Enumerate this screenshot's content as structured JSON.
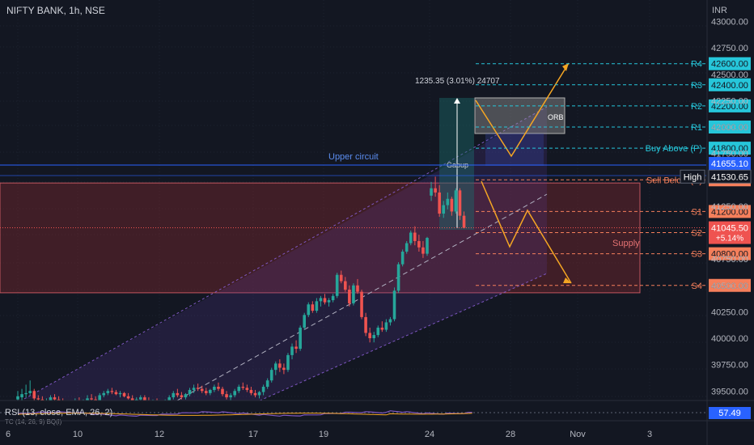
{
  "header": {
    "title": "NIFTY BANK, 1h, NSE",
    "currency": "INR"
  },
  "chart_data": {
    "type": "candlestick",
    "title": "NIFTY BANK, 1h, NSE",
    "y_unit": "INR",
    "price_ticks": [
      "43000.00",
      "42750.00",
      "42500.00",
      "42250.00",
      "42000.00",
      "41750.00",
      "41500.00",
      "41250.00",
      "41000.00",
      "40750.00",
      "40500.00",
      "40250.00",
      "40000.00",
      "39750.00",
      "39500.00"
    ],
    "x_ticks": [
      "6",
      "10",
      "12",
      "17",
      "19",
      "24",
      "28",
      "Nov",
      "3"
    ],
    "levels": [
      {
        "name": "R4",
        "price": 42600.0,
        "label": "42600.00",
        "color": "#26c6da"
      },
      {
        "name": "R3",
        "price": 42400.0,
        "label": "42400.00",
        "color": "#26c6da"
      },
      {
        "name": "R2",
        "price": 42200.0,
        "label": "42200.00",
        "color": "#26c6da"
      },
      {
        "name": "R1",
        "price": 42000.0,
        "label": "42000.00",
        "color": "#26c6da"
      },
      {
        "name": "Buy Above (P)",
        "price": 41800.0,
        "label": "41800.00",
        "color": "#26c6da"
      },
      {
        "name": "Sell Below (P)",
        "price": 41500.0,
        "label": "41500.00",
        "color": "#f57f5b"
      },
      {
        "name": "S1",
        "price": 41200.0,
        "label": "41200.00",
        "color": "#f57f5b"
      },
      {
        "name": "S2",
        "price": 41000.0,
        "label": "41000.00",
        "color": "#f57f5b"
      },
      {
        "name": "S3",
        "price": 40800.0,
        "label": "40800.00",
        "color": "#f57f5b"
      },
      {
        "name": "S4",
        "price": 40500.0,
        "label": "40500.00",
        "color": "#f57f5b"
      }
    ],
    "price_badges": [
      {
        "price": 41655.1,
        "label": "41655.10",
        "bg": "#2962ff",
        "fg": "#ffffff"
      },
      {
        "price": 41530.65,
        "label": "41530.65",
        "bg": "#131722",
        "fg": "#ffffff",
        "tag": "High"
      },
      {
        "price": 41045.5,
        "label": "41045.50",
        "sub": "+5.14%",
        "bg": "#ef5350",
        "fg": "#ffffff"
      }
    ],
    "annotations": {
      "upper_circuit": {
        "label": "Upper circuit",
        "price": 41530
      },
      "gapup": {
        "label": "Gapup"
      },
      "measure": {
        "label": "1235.35 (3.01%) 24707"
      },
      "orb": {
        "label": "ORB"
      },
      "supply": {
        "label": "Supply",
        "top": 41470,
        "bottom": 40430
      }
    },
    "candles": [
      [
        39420,
        39500,
        39380,
        39450
      ],
      [
        39440,
        39520,
        39400,
        39470
      ],
      [
        39470,
        39560,
        39440,
        39480
      ],
      [
        39480,
        39600,
        39460,
        39500
      ],
      [
        39500,
        39520,
        39400,
        39430
      ],
      [
        39430,
        39460,
        39380,
        39420
      ],
      [
        39420,
        39450,
        39360,
        39390
      ],
      [
        39390,
        39430,
        39350,
        39410
      ],
      [
        39410,
        39460,
        39380,
        39440
      ],
      [
        39440,
        39470,
        39400,
        39420
      ],
      [
        39420,
        39450,
        39380,
        39400
      ],
      [
        39400,
        39430,
        39360,
        39380
      ],
      [
        39380,
        39410,
        39340,
        39360
      ],
      [
        39360,
        39400,
        39330,
        39390
      ],
      [
        39390,
        39430,
        39370,
        39400
      ],
      [
        39400,
        39440,
        39360,
        39380
      ],
      [
        39380,
        39420,
        39350,
        39410
      ],
      [
        39410,
        39460,
        39390,
        39430
      ],
      [
        39430,
        39470,
        39400,
        39420
      ],
      [
        39420,
        39450,
        39380,
        39400
      ],
      [
        39400,
        39480,
        39380,
        39460
      ],
      [
        39460,
        39500,
        39440,
        39480
      ],
      [
        39480,
        39520,
        39460,
        39500
      ],
      [
        39500,
        39530,
        39470,
        39490
      ],
      [
        39490,
        39510,
        39460,
        39470
      ],
      [
        39470,
        39500,
        39440,
        39480
      ],
      [
        39480,
        39490,
        39440,
        39450
      ],
      [
        39450,
        39480,
        39420,
        39430
      ],
      [
        39430,
        39460,
        39380,
        39400
      ],
      [
        39400,
        39440,
        39370,
        39420
      ],
      [
        39420,
        39460,
        39400,
        39440
      ],
      [
        39440,
        39460,
        39390,
        39410
      ],
      [
        39410,
        39440,
        39370,
        39380
      ],
      [
        39380,
        39420,
        39360,
        39400
      ],
      [
        39400,
        39430,
        39350,
        39370
      ],
      [
        39370,
        39400,
        39340,
        39360
      ],
      [
        39360,
        39420,
        39340,
        39400
      ],
      [
        39400,
        39460,
        39380,
        39440
      ],
      [
        39440,
        39500,
        39420,
        39480
      ],
      [
        39480,
        39520,
        39440,
        39460
      ],
      [
        39460,
        39490,
        39420,
        39440
      ],
      [
        39440,
        39480,
        39420,
        39470
      ],
      [
        39470,
        39530,
        39450,
        39510
      ],
      [
        39510,
        39560,
        39480,
        39530
      ],
      [
        39530,
        39570,
        39500,
        39520
      ],
      [
        39520,
        39550,
        39480,
        39500
      ],
      [
        39500,
        39530,
        39460,
        39480
      ],
      [
        39480,
        39520,
        39460,
        39510
      ],
      [
        39510,
        39560,
        39490,
        39540
      ],
      [
        39540,
        39580,
        39500,
        39520
      ],
      [
        39520,
        39540,
        39450,
        39470
      ],
      [
        39470,
        39500,
        39420,
        39440
      ],
      [
        39440,
        39480,
        39400,
        39460
      ],
      [
        39460,
        39520,
        39440,
        39500
      ],
      [
        39500,
        39560,
        39480,
        39540
      ],
      [
        39540,
        39580,
        39510,
        39530
      ],
      [
        39530,
        39560,
        39490,
        39510
      ],
      [
        39510,
        39540,
        39460,
        39480
      ],
      [
        39480,
        39510,
        39440,
        39460
      ],
      [
        39460,
        39500,
        39430,
        39490
      ],
      [
        39490,
        39560,
        39460,
        39540
      ],
      [
        39540,
        39620,
        39520,
        39600
      ],
      [
        39600,
        39720,
        39580,
        39700
      ],
      [
        39700,
        39780,
        39650,
        39760
      ],
      [
        39760,
        39800,
        39680,
        39720
      ],
      [
        39720,
        39760,
        39660,
        39700
      ],
      [
        39700,
        39860,
        39680,
        39840
      ],
      [
        39840,
        39950,
        39800,
        39920
      ],
      [
        39920,
        39980,
        39860,
        39900
      ],
      [
        39900,
        40120,
        39880,
        40100
      ],
      [
        40100,
        40240,
        40080,
        40220
      ],
      [
        40220,
        40340,
        40200,
        40320
      ],
      [
        40320,
        40350,
        40240,
        40260
      ],
      [
        40260,
        40380,
        40240,
        40350
      ],
      [
        40350,
        40400,
        40300,
        40380
      ],
      [
        40380,
        40420,
        40320,
        40340
      ],
      [
        40340,
        40380,
        40300,
        40360
      ],
      [
        40360,
        40420,
        40340,
        40400
      ],
      [
        40400,
        40620,
        40380,
        40600
      ],
      [
        40600,
        40640,
        40520,
        40540
      ],
      [
        40540,
        40580,
        40440,
        40460
      ],
      [
        40460,
        40500,
        40300,
        40330
      ],
      [
        40330,
        40520,
        40310,
        40500
      ],
      [
        40500,
        40560,
        40420,
        40440
      ],
      [
        40440,
        40460,
        40180,
        40200
      ],
      [
        40200,
        40240,
        40020,
        40050
      ],
      [
        40050,
        40100,
        39960,
        40000
      ],
      [
        40000,
        40060,
        39960,
        40030
      ],
      [
        40030,
        40120,
        40010,
        40100
      ],
      [
        40100,
        40160,
        40060,
        40080
      ],
      [
        40080,
        40180,
        40060,
        40150
      ],
      [
        40150,
        40200,
        40120,
        40180
      ],
      [
        40180,
        40480,
        40160,
        40450
      ],
      [
        40450,
        40720,
        40430,
        40700
      ],
      [
        40700,
        40840,
        40680,
        40820
      ],
      [
        40820,
        40920,
        40800,
        40900
      ],
      [
        40900,
        41020,
        40880,
        41000
      ],
      [
        41000,
        41060,
        40880,
        40920
      ],
      [
        40920,
        40980,
        40820,
        40860
      ],
      [
        40860,
        40920,
        40760,
        40800
      ],
      [
        40800,
        40960,
        40780,
        40950
      ],
      [
        41350,
        41480,
        41300,
        41420
      ],
      [
        41420,
        41530,
        41340,
        41380
      ],
      [
        41380,
        41450,
        41150,
        41180
      ],
      [
        41180,
        41300,
        41140,
        41260
      ],
      [
        41260,
        41380,
        41220,
        41320
      ],
      [
        41320,
        41340,
        41160,
        41200
      ],
      [
        41200,
        41420,
        41180,
        41400
      ],
      [
        41400,
        41420,
        41120,
        41160
      ],
      [
        41160,
        41200,
        41040,
        41045
      ]
    ],
    "indicator": {
      "label": "RSI (13, close, EMA, 26, 2)",
      "sub_label": "TC (14, 26, 9) BQ(l)",
      "value": "57.49"
    }
  }
}
